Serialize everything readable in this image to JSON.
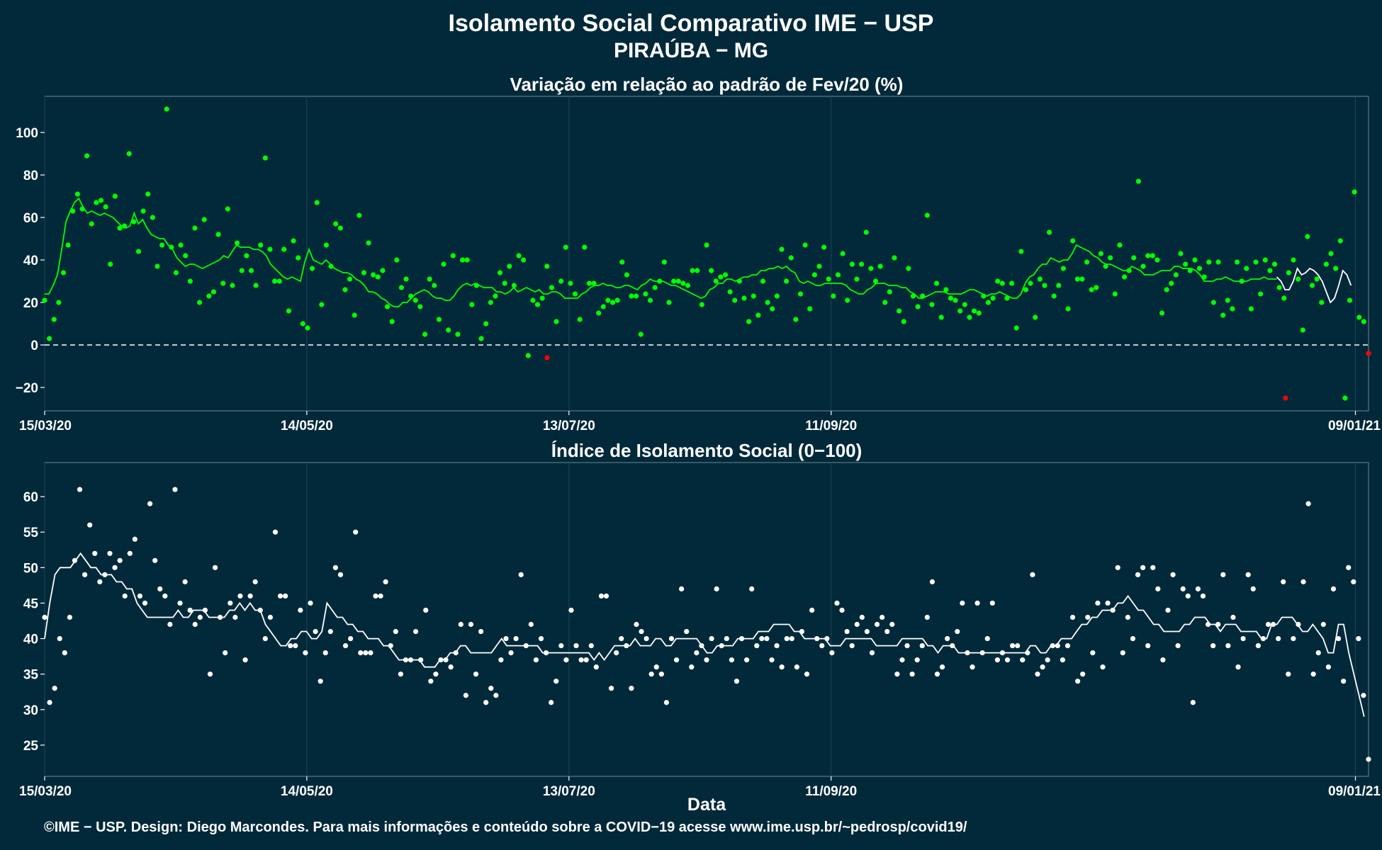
{
  "header": {
    "title": "Isolamento Social Comparativo IME − USP",
    "subtitle": "PIRAÚBA − MG"
  },
  "footer": {
    "credit": "©IME − USP. Design: Diego Marcondes. Para mais informações e conteúdo sobre a COVID−19 acesse www.ime.usp.br/~pedrosp/covid19/"
  },
  "colors": {
    "background": "#02293a",
    "green": "#00ff00",
    "white": "#ffffff",
    "red": "#ff0000",
    "grid": "#1f4553"
  },
  "chart_data": [
    {
      "type": "scatter",
      "title": "Variação em relação ao padrão de Fev/20 (%)",
      "xlabel": "",
      "ylabel": "",
      "x_tick_labels": [
        "15/03/20",
        "14/05/20",
        "13/07/20",
        "11/09/20",
        "09/01/21"
      ],
      "x_tick_days": [
        0,
        60,
        120,
        180,
        300
      ],
      "xlim_days": [
        0,
        303
      ],
      "ylim": [
        -31,
        117
      ],
      "y_ticks": [
        -20,
        0,
        20,
        40,
        60,
        80,
        100
      ],
      "reference_line": 0,
      "grid": true,
      "point_values": [
        21,
        3,
        12,
        20,
        34,
        47,
        63,
        71,
        64,
        89,
        57,
        67,
        68,
        65,
        38,
        70,
        55,
        56,
        90,
        58,
        44,
        63,
        71,
        60,
        37,
        47,
        111,
        46,
        34,
        47,
        42,
        30,
        55,
        20,
        59,
        23,
        25,
        52,
        29,
        64,
        28,
        48,
        35,
        42,
        35,
        28,
        47,
        88,
        45,
        30,
        30,
        45,
        16,
        49,
        41,
        10,
        8,
        36,
        67,
        19,
        47,
        37,
        57,
        55,
        26,
        31,
        14,
        61,
        34,
        48,
        33,
        32,
        35,
        18,
        11,
        40,
        27,
        31,
        23,
        21,
        18,
        5,
        31,
        28,
        12,
        38,
        7,
        42,
        5,
        40,
        40,
        19,
        28,
        3,
        10,
        20,
        23,
        34,
        29,
        37,
        28,
        42,
        40,
        -5,
        21,
        19,
        22,
        37,
        27,
        11,
        30,
        46,
        29,
        24,
        12,
        46,
        29,
        29,
        15,
        18,
        21,
        20,
        21,
        39,
        33,
        23,
        23,
        5,
        24,
        21,
        27,
        30,
        39,
        20,
        30,
        30,
        29,
        28,
        35,
        35,
        19,
        47,
        35,
        30,
        32,
        33,
        25,
        21,
        30,
        22,
        11,
        23,
        14,
        30,
        20,
        17,
        23,
        45,
        30,
        41,
        12,
        24,
        47,
        17,
        33,
        37,
        46,
        31,
        23,
        33,
        43,
        21,
        38,
        31,
        38,
        53,
        36,
        30,
        37,
        20,
        25,
        41,
        16,
        11,
        36,
        23,
        18,
        23,
        61,
        19,
        29,
        13,
        26,
        22,
        21,
        16,
        19,
        13,
        16,
        15,
        23,
        20,
        22,
        30,
        29,
        22,
        29,
        8,
        44,
        26,
        29,
        13,
        31,
        28,
        53,
        23,
        28,
        36,
        17,
        49,
        31,
        31,
        39,
        26,
        27,
        43,
        37,
        41,
        24,
        47,
        32,
        35,
        41,
        77,
        37,
        42,
        42,
        40,
        15,
        26,
        29,
        33,
        43,
        38,
        35,
        40,
        36,
        32,
        39,
        20,
        39,
        14,
        21,
        17,
        39,
        30,
        36,
        17,
        39,
        24,
        40,
        35,
        38,
        27,
        22,
        34,
        40,
        31,
        7,
        51,
        28,
        31,
        20,
        38,
        43,
        36,
        49,
        -25,
        21,
        72,
        13,
        11,
        -4
      ],
      "negative_points": [
        {
          "x_day": 115,
          "y": -6
        },
        {
          "x_day": 284,
          "y": -25
        },
        {
          "x_day": 303,
          "y": -4
        }
      ],
      "moving_average": [
        24,
        24,
        28,
        33,
        45,
        58,
        63,
        67,
        69,
        65,
        62,
        63,
        62,
        61,
        62,
        61,
        60,
        58,
        56,
        55,
        56,
        62,
        57,
        59,
        55,
        52,
        51,
        50,
        50,
        47,
        45,
        41,
        39,
        37,
        38,
        38,
        37,
        36,
        37,
        38,
        39,
        40,
        42,
        41,
        44,
        47,
        46,
        46,
        46,
        45,
        45,
        44,
        42,
        38,
        36,
        34,
        32,
        31,
        32,
        31,
        30,
        39,
        45,
        40,
        39,
        38,
        40,
        38,
        36,
        35,
        34,
        34,
        33,
        31,
        30,
        28,
        25,
        25,
        24,
        22,
        21,
        19,
        18,
        18,
        20,
        20,
        22,
        24,
        25,
        26,
        25,
        23,
        22,
        22,
        21,
        21,
        23,
        26,
        28,
        29,
        28,
        29,
        28,
        27,
        27,
        27,
        25,
        25,
        24,
        25,
        27,
        25,
        26,
        27,
        26,
        25,
        26,
        24,
        24,
        25,
        25,
        24,
        22,
        22,
        22,
        22,
        24,
        25,
        27,
        28,
        28,
        29,
        28,
        28,
        27,
        27,
        28,
        28,
        27,
        26,
        28,
        29,
        31,
        30,
        30,
        30,
        29,
        28,
        28,
        27,
        26,
        25,
        24,
        23,
        22,
        23,
        26,
        27,
        29,
        29,
        31,
        31,
        30,
        31,
        32,
        32,
        33,
        33,
        35,
        35,
        36,
        36,
        37,
        36,
        37,
        35,
        34,
        30,
        29,
        30,
        29,
        28,
        28,
        29,
        29,
        29,
        29,
        29,
        28,
        26,
        25,
        24,
        24,
        26,
        27,
        29,
        29,
        29,
        28,
        28,
        28,
        27,
        27,
        25,
        24,
        22,
        22,
        23,
        24,
        25,
        25,
        25,
        24,
        24,
        24,
        24,
        25,
        26,
        26,
        25,
        24,
        23,
        24,
        24,
        25,
        24,
        23,
        22,
        22,
        24,
        29,
        32,
        33,
        36,
        38,
        38,
        41,
        40,
        39,
        40,
        40,
        43,
        47,
        46,
        45,
        44,
        42,
        41,
        39,
        38,
        38,
        37,
        36,
        35,
        35,
        37,
        36,
        35,
        33,
        33,
        33,
        34,
        35,
        35,
        35,
        37,
        37,
        36,
        36,
        36,
        35,
        33,
        30,
        30,
        30,
        31,
        31,
        32,
        31,
        30,
        30,
        30,
        30,
        31,
        31,
        31,
        32,
        31,
        31,
        31
      ],
      "moving_average_tail_white": [
        32,
        30,
        26,
        26,
        30,
        36,
        33,
        34,
        36,
        35,
        33,
        30,
        25,
        20,
        22,
        28,
        35,
        33,
        28
      ]
    },
    {
      "type": "scatter",
      "title": "Índice de Isolamento Social (0−100)",
      "xlabel": "Data",
      "ylabel": "",
      "x_tick_labels": [
        "15/03/20",
        "14/05/20",
        "13/07/20",
        "11/09/20",
        "09/01/21"
      ],
      "x_tick_days": [
        0,
        60,
        120,
        180,
        300
      ],
      "xlim_days": [
        0,
        303
      ],
      "ylim": [
        20.6,
        64.8
      ],
      "y_ticks": [
        25,
        30,
        35,
        40,
        45,
        50,
        55,
        60
      ],
      "grid": true,
      "point_values": [
        43,
        31,
        33,
        40,
        38,
        43,
        51,
        61,
        49,
        56,
        52,
        48,
        49,
        52,
        50,
        51,
        46,
        52,
        54,
        46,
        45,
        59,
        51,
        47,
        46,
        42,
        61,
        45,
        48,
        44,
        42,
        43,
        44,
        35,
        50,
        43,
        38,
        45,
        43,
        46,
        37,
        46,
        48,
        44,
        40,
        43,
        55,
        46,
        46,
        39,
        39,
        44,
        38,
        45,
        41,
        34,
        38,
        41,
        50,
        49,
        39,
        40,
        55,
        38,
        38,
        38,
        46,
        46,
        48,
        39,
        41,
        35,
        37,
        37,
        41,
        37,
        44,
        34,
        35,
        37,
        37,
        36,
        38,
        42,
        32,
        42,
        35,
        41,
        31,
        33,
        32,
        37,
        40,
        38,
        40,
        49,
        39,
        42,
        37,
        40,
        38,
        31,
        34,
        39,
        37,
        44,
        39,
        37,
        37,
        39,
        36,
        46,
        46,
        33,
        38,
        40,
        39,
        33,
        42,
        41,
        40,
        35,
        36,
        35,
        31,
        40,
        37,
        47,
        41,
        36,
        38,
        39,
        37,
        40,
        47,
        39,
        40,
        37,
        34,
        40,
        37,
        47,
        39,
        40,
        40,
        37,
        39,
        36,
        40,
        40,
        36,
        41,
        35,
        44,
        40,
        39,
        40,
        38,
        45,
        44,
        41,
        39,
        42,
        43,
        41,
        38,
        42,
        43,
        41,
        42,
        35,
        37,
        39,
        35,
        37,
        39,
        43,
        48,
        35,
        36,
        40,
        39,
        41,
        45,
        38,
        36,
        45,
        38,
        40,
        45,
        37,
        38,
        37,
        39,
        39,
        37,
        38,
        49,
        35,
        36,
        37,
        39,
        39,
        37,
        39,
        43,
        34,
        35,
        43,
        38,
        45,
        36,
        45,
        44,
        50,
        38,
        43,
        40,
        49,
        50,
        39,
        50,
        47,
        37,
        44,
        49,
        39,
        47,
        46,
        31,
        47,
        46,
        42,
        39,
        42,
        49,
        39,
        43,
        36,
        40,
        49,
        47,
        39,
        40,
        42,
        42,
        40,
        48,
        35,
        40,
        42,
        48,
        59,
        35,
        38,
        42,
        36,
        47,
        40,
        34,
        50,
        48,
        40,
        32,
        23
      ],
      "moving_average": [
        40,
        45,
        49,
        50,
        50,
        50,
        51,
        52,
        51,
        50,
        50,
        49,
        49,
        49,
        48,
        48,
        47,
        47,
        45,
        44,
        43,
        43,
        43,
        43,
        43,
        43,
        44,
        43,
        43,
        44,
        44,
        44,
        43,
        43,
        43,
        43,
        44,
        44,
        45,
        44,
        45,
        44,
        44,
        42,
        41,
        40,
        39,
        39,
        40,
        40,
        41,
        41,
        40,
        40,
        41,
        45,
        44,
        43,
        43,
        42,
        42,
        41,
        41,
        40,
        40,
        40,
        39,
        39,
        38,
        37,
        37,
        37,
        37,
        37,
        36,
        36,
        36,
        37,
        37,
        38,
        38,
        39,
        39,
        38,
        38,
        38,
        38,
        38,
        39,
        40,
        39,
        39,
        39,
        39,
        39,
        39,
        39,
        38,
        38,
        38,
        38,
        38,
        38,
        38,
        38,
        38,
        38,
        37,
        38,
        37,
        38,
        39,
        39,
        39,
        39,
        40,
        39,
        39,
        39,
        40,
        40,
        39,
        39,
        40,
        40,
        40,
        40,
        40,
        39,
        38,
        38,
        39,
        39,
        39,
        39,
        40,
        40,
        40,
        40,
        41,
        41,
        41,
        42,
        42,
        42,
        42,
        41,
        41,
        40,
        40,
        40,
        40,
        40,
        39,
        39,
        39,
        40,
        40,
        40,
        40,
        40,
        40,
        39,
        39,
        39,
        39,
        39,
        40,
        40,
        40,
        40,
        40,
        39,
        39,
        38,
        39,
        39,
        39,
        38,
        38,
        38,
        38,
        38,
        38,
        38,
        38,
        38,
        38,
        38,
        38,
        38,
        38,
        39,
        39,
        38,
        38,
        39,
        39,
        40,
        40,
        40,
        41,
        42,
        42,
        43,
        43,
        44,
        44,
        44,
        45,
        45,
        46,
        45,
        44,
        44,
        43,
        42,
        42,
        41,
        41,
        41,
        41,
        42,
        42,
        43,
        43,
        43,
        42,
        42,
        41,
        42,
        42,
        42,
        41,
        41,
        41,
        41,
        40,
        40,
        42,
        42,
        43,
        43,
        43,
        42,
        41,
        41,
        42,
        41,
        40,
        38,
        38,
        42,
        42,
        38,
        35,
        32,
        29
      ]
    }
  ]
}
